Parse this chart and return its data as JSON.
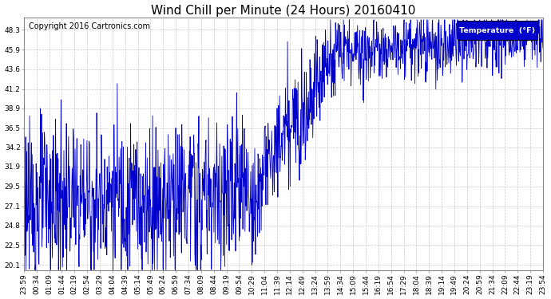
{
  "title": "Wind Chill per Minute (24 Hours) 20160410",
  "copyright": "Copyright 2016 Cartronics.com",
  "legend_label": "Temperature  (°F)",
  "legend_bg": "#0000cd",
  "legend_text_color": "#ffffff",
  "line_color": "#0000cd",
  "bg_color": "#ffffff",
  "plot_bg_color": "#ffffff",
  "grid_color": "#bbbbbb",
  "yticks": [
    20.1,
    22.5,
    24.8,
    27.1,
    29.5,
    31.9,
    34.2,
    36.5,
    38.9,
    41.2,
    43.6,
    45.9,
    48.3
  ],
  "ymin": 19.4,
  "ymax": 49.8,
  "xtick_labels": [
    "23:59",
    "00:34",
    "01:09",
    "01:44",
    "02:19",
    "02:54",
    "03:29",
    "04:04",
    "04:39",
    "05:14",
    "05:49",
    "06:24",
    "06:59",
    "07:34",
    "08:09",
    "08:44",
    "09:19",
    "09:54",
    "10:29",
    "11:04",
    "11:39",
    "12:14",
    "12:49",
    "13:24",
    "13:59",
    "14:34",
    "15:09",
    "15:44",
    "16:19",
    "16:54",
    "17:29",
    "18:04",
    "18:39",
    "19:14",
    "19:49",
    "20:24",
    "20:59",
    "21:34",
    "22:09",
    "22:44",
    "23:19",
    "23:54"
  ],
  "title_fontsize": 11,
  "tick_fontsize": 6.5,
  "copyright_fontsize": 7
}
